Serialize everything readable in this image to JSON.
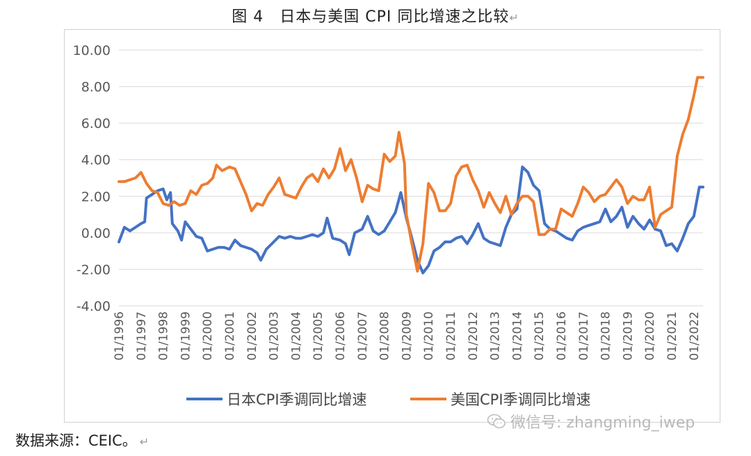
{
  "title": "图 4　日本与美国 CPI 同比增速之比较",
  "return_mark": "↵",
  "source": "数据来源：CEIC。",
  "watermark": "微信号: zhangming_iwep",
  "colors": {
    "japan": "#4472C4",
    "us": "#ED7D31",
    "grid": "#d9d9d9",
    "axis_text": "#595959"
  },
  "chart_data": {
    "type": "line",
    "title": "图 4　日本与美国 CPI 同比增速之比较",
    "xlabel": "",
    "ylabel": "",
    "ylim": [
      -4,
      10
    ],
    "yticks": [
      "10.00",
      "8.00",
      "6.00",
      "4.00",
      "2.00",
      "0.00",
      "-2.00",
      "-4.00"
    ],
    "grid": true,
    "legend": "bottom",
    "x_range": [
      "1996-01",
      "2022-06"
    ],
    "x_tick_labels": [
      "01/1996",
      "01/1997",
      "01/1998",
      "01/1999",
      "01/2000",
      "01/2001",
      "01/2002",
      "01/2003",
      "01/2004",
      "01/2005",
      "01/2006",
      "01/2007",
      "01/2008",
      "01/2009",
      "01/2010",
      "01/2011",
      "01/2012",
      "01/2013",
      "01/2014",
      "01/2015",
      "01/2016",
      "01/2017",
      "01/2018",
      "01/2019",
      "01/2020",
      "01/2021",
      "01/2022"
    ],
    "series": [
      {
        "name": "日本CPI季调同比增速",
        "color": "#4472C4",
        "points": [
          [
            "1996-01",
            -0.5
          ],
          [
            "1996-04",
            0.3
          ],
          [
            "1996-07",
            0.1
          ],
          [
            "1996-10",
            0.3
          ],
          [
            "1997-01",
            0.5
          ],
          [
            "1997-03",
            0.6
          ],
          [
            "1997-04",
            1.9
          ],
          [
            "1997-07",
            2.1
          ],
          [
            "1997-10",
            2.3
          ],
          [
            "1998-01",
            2.4
          ],
          [
            "1998-03",
            1.8
          ],
          [
            "1998-05",
            2.2
          ],
          [
            "1998-06",
            0.5
          ],
          [
            "1998-09",
            0.1
          ],
          [
            "1998-11",
            -0.4
          ],
          [
            "1999-01",
            0.6
          ],
          [
            "1999-04",
            0.2
          ],
          [
            "1999-07",
            -0.2
          ],
          [
            "1999-10",
            -0.3
          ],
          [
            "2000-01",
            -1.0
          ],
          [
            "2000-04",
            -0.9
          ],
          [
            "2000-07",
            -0.8
          ],
          [
            "2000-10",
            -0.8
          ],
          [
            "2001-01",
            -0.9
          ],
          [
            "2001-04",
            -0.4
          ],
          [
            "2001-07",
            -0.7
          ],
          [
            "2001-10",
            -0.8
          ],
          [
            "2002-01",
            -0.9
          ],
          [
            "2002-04",
            -1.1
          ],
          [
            "2002-06",
            -1.5
          ],
          [
            "2002-09",
            -0.9
          ],
          [
            "2003-01",
            -0.5
          ],
          [
            "2003-04",
            -0.2
          ],
          [
            "2003-07",
            -0.3
          ],
          [
            "2003-10",
            -0.2
          ],
          [
            "2004-01",
            -0.3
          ],
          [
            "2004-04",
            -0.3
          ],
          [
            "2004-07",
            -0.2
          ],
          [
            "2004-10",
            -0.1
          ],
          [
            "2005-01",
            -0.2
          ],
          [
            "2005-04",
            0.0
          ],
          [
            "2005-06",
            0.8
          ],
          [
            "2005-09",
            -0.3
          ],
          [
            "2006-01",
            -0.4
          ],
          [
            "2006-04",
            -0.6
          ],
          [
            "2006-06",
            -1.2
          ],
          [
            "2006-09",
            0.0
          ],
          [
            "2007-01",
            0.2
          ],
          [
            "2007-04",
            0.9
          ],
          [
            "2007-07",
            0.1
          ],
          [
            "2007-10",
            -0.1
          ],
          [
            "2008-01",
            0.1
          ],
          [
            "2008-04",
            0.6
          ],
          [
            "2008-07",
            1.1
          ],
          [
            "2008-10",
            2.2
          ],
          [
            "2009-01",
            0.8
          ],
          [
            "2009-04",
            -0.3
          ],
          [
            "2009-07",
            -1.5
          ],
          [
            "2009-10",
            -2.2
          ],
          [
            "2010-01",
            -1.8
          ],
          [
            "2010-04",
            -1.0
          ],
          [
            "2010-07",
            -0.8
          ],
          [
            "2010-10",
            -0.5
          ],
          [
            "2011-01",
            -0.5
          ],
          [
            "2011-04",
            -0.3
          ],
          [
            "2011-07",
            -0.2
          ],
          [
            "2011-10",
            -0.6
          ],
          [
            "2012-01",
            -0.1
          ],
          [
            "2012-04",
            0.5
          ],
          [
            "2012-07",
            -0.3
          ],
          [
            "2012-10",
            -0.5
          ],
          [
            "2013-01",
            -0.6
          ],
          [
            "2013-04",
            -0.7
          ],
          [
            "2013-07",
            0.3
          ],
          [
            "2013-10",
            1.0
          ],
          [
            "2014-01",
            1.3
          ],
          [
            "2014-04",
            3.6
          ],
          [
            "2014-07",
            3.3
          ],
          [
            "2014-10",
            2.6
          ],
          [
            "2015-01",
            2.3
          ],
          [
            "2015-04",
            0.5
          ],
          [
            "2015-07",
            0.2
          ],
          [
            "2015-10",
            0.1
          ],
          [
            "2016-01",
            -0.1
          ],
          [
            "2016-04",
            -0.3
          ],
          [
            "2016-07",
            -0.4
          ],
          [
            "2016-10",
            0.1
          ],
          [
            "2017-01",
            0.3
          ],
          [
            "2017-04",
            0.4
          ],
          [
            "2017-07",
            0.5
          ],
          [
            "2017-10",
            0.6
          ],
          [
            "2018-01",
            1.3
          ],
          [
            "2018-04",
            0.6
          ],
          [
            "2018-07",
            0.9
          ],
          [
            "2018-10",
            1.4
          ],
          [
            "2019-01",
            0.3
          ],
          [
            "2019-04",
            0.9
          ],
          [
            "2019-07",
            0.5
          ],
          [
            "2019-10",
            0.2
          ],
          [
            "2020-01",
            0.7
          ],
          [
            "2020-04",
            0.2
          ],
          [
            "2020-07",
            0.1
          ],
          [
            "2020-10",
            -0.7
          ],
          [
            "2021-01",
            -0.6
          ],
          [
            "2021-04",
            -1.0
          ],
          [
            "2021-07",
            -0.3
          ],
          [
            "2021-10",
            0.5
          ],
          [
            "2022-01",
            0.9
          ],
          [
            "2022-04",
            2.5
          ],
          [
            "2022-06",
            2.5
          ]
        ]
      },
      {
        "name": "美国CPI季调同比增速",
        "color": "#ED7D31",
        "points": [
          [
            "1996-01",
            2.8
          ],
          [
            "1996-04",
            2.8
          ],
          [
            "1996-07",
            2.9
          ],
          [
            "1996-10",
            3.0
          ],
          [
            "1997-01",
            3.3
          ],
          [
            "1997-04",
            2.7
          ],
          [
            "1997-07",
            2.3
          ],
          [
            "1997-10",
            2.2
          ],
          [
            "1998-01",
            1.6
          ],
          [
            "1998-04",
            1.5
          ],
          [
            "1998-07",
            1.7
          ],
          [
            "1998-10",
            1.5
          ],
          [
            "1999-01",
            1.6
          ],
          [
            "1999-04",
            2.3
          ],
          [
            "1999-07",
            2.1
          ],
          [
            "1999-10",
            2.6
          ],
          [
            "2000-01",
            2.7
          ],
          [
            "2000-04",
            3.0
          ],
          [
            "2000-06",
            3.7
          ],
          [
            "2000-09",
            3.4
          ],
          [
            "2001-01",
            3.6
          ],
          [
            "2001-04",
            3.5
          ],
          [
            "2001-07",
            2.8
          ],
          [
            "2001-10",
            2.1
          ],
          [
            "2002-01",
            1.2
          ],
          [
            "2002-04",
            1.6
          ],
          [
            "2002-07",
            1.5
          ],
          [
            "2002-10",
            2.1
          ],
          [
            "2003-01",
            2.5
          ],
          [
            "2003-04",
            3.0
          ],
          [
            "2003-07",
            2.1
          ],
          [
            "2003-10",
            2.0
          ],
          [
            "2004-01",
            1.9
          ],
          [
            "2004-04",
            2.5
          ],
          [
            "2004-07",
            3.0
          ],
          [
            "2004-10",
            3.2
          ],
          [
            "2005-01",
            2.8
          ],
          [
            "2005-04",
            3.5
          ],
          [
            "2005-07",
            3.0
          ],
          [
            "2005-10",
            3.5
          ],
          [
            "2006-01",
            4.6
          ],
          [
            "2006-04",
            3.4
          ],
          [
            "2006-07",
            4.0
          ],
          [
            "2006-10",
            3.0
          ],
          [
            "2007-01",
            1.7
          ],
          [
            "2007-04",
            2.6
          ],
          [
            "2007-07",
            2.4
          ],
          [
            "2007-10",
            2.3
          ],
          [
            "2008-01",
            4.3
          ],
          [
            "2008-04",
            3.9
          ],
          [
            "2008-07",
            4.2
          ],
          [
            "2008-09",
            5.5
          ],
          [
            "2008-12",
            3.8
          ],
          [
            "2009-01",
            1.0
          ],
          [
            "2009-04",
            -0.6
          ],
          [
            "2009-07",
            -2.1
          ],
          [
            "2009-10",
            -0.6
          ],
          [
            "2010-01",
            2.7
          ],
          [
            "2010-04",
            2.2
          ],
          [
            "2010-07",
            1.2
          ],
          [
            "2010-10",
            1.2
          ],
          [
            "2011-01",
            1.6
          ],
          [
            "2011-04",
            3.1
          ],
          [
            "2011-07",
            3.6
          ],
          [
            "2011-10",
            3.7
          ],
          [
            "2012-01",
            2.9
          ],
          [
            "2012-04",
            2.3
          ],
          [
            "2012-07",
            1.4
          ],
          [
            "2012-10",
            2.2
          ],
          [
            "2013-01",
            1.6
          ],
          [
            "2013-04",
            1.1
          ],
          [
            "2013-07",
            2.0
          ],
          [
            "2013-10",
            1.0
          ],
          [
            "2014-01",
            1.6
          ],
          [
            "2014-04",
            2.0
          ],
          [
            "2014-07",
            2.0
          ],
          [
            "2014-10",
            1.7
          ],
          [
            "2015-01",
            -0.1
          ],
          [
            "2015-04",
            -0.1
          ],
          [
            "2015-07",
            0.2
          ],
          [
            "2015-10",
            0.2
          ],
          [
            "2016-01",
            1.3
          ],
          [
            "2016-04",
            1.1
          ],
          [
            "2016-07",
            0.9
          ],
          [
            "2016-10",
            1.6
          ],
          [
            "2017-01",
            2.5
          ],
          [
            "2017-04",
            2.2
          ],
          [
            "2017-07",
            1.7
          ],
          [
            "2017-10",
            2.0
          ],
          [
            "2018-01",
            2.1
          ],
          [
            "2018-04",
            2.5
          ],
          [
            "2018-07",
            2.9
          ],
          [
            "2018-10",
            2.5
          ],
          [
            "2019-01",
            1.6
          ],
          [
            "2019-04",
            2.0
          ],
          [
            "2019-07",
            1.8
          ],
          [
            "2019-10",
            1.8
          ],
          [
            "2020-01",
            2.5
          ],
          [
            "2020-04",
            0.3
          ],
          [
            "2020-07",
            1.0
          ],
          [
            "2020-10",
            1.2
          ],
          [
            "2021-01",
            1.4
          ],
          [
            "2021-04",
            4.2
          ],
          [
            "2021-07",
            5.4
          ],
          [
            "2021-10",
            6.2
          ],
          [
            "2022-01",
            7.5
          ],
          [
            "2022-03",
            8.5
          ],
          [
            "2022-06",
            8.5
          ]
        ]
      }
    ]
  }
}
